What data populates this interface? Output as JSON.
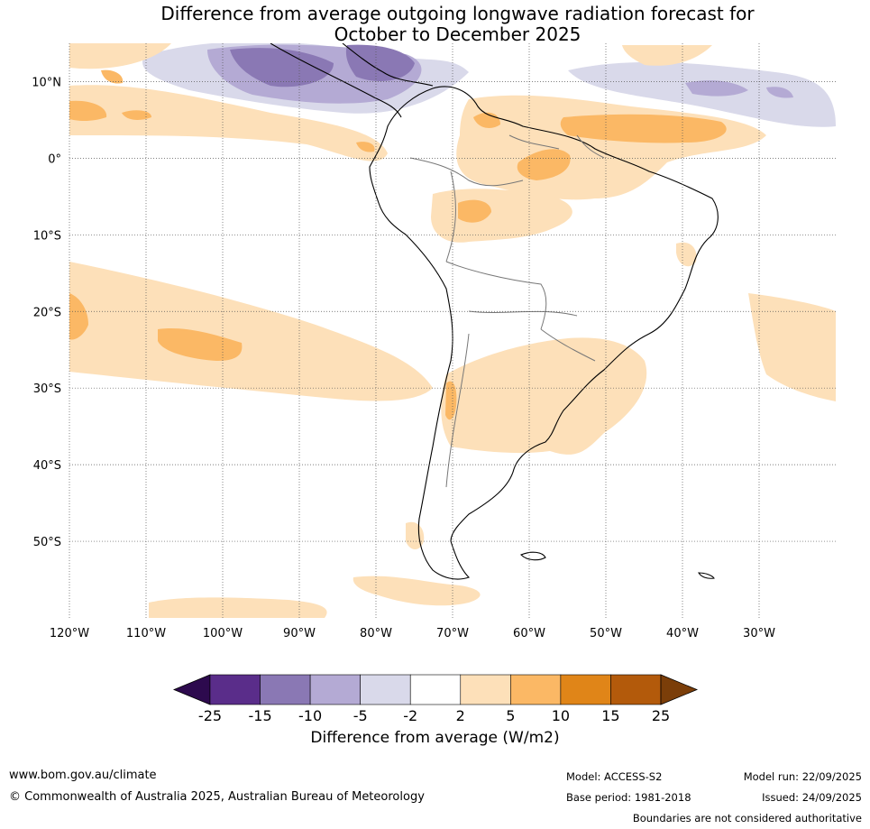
{
  "title": {
    "line1": "Difference from average outgoing longwave radiation forecast for",
    "line2": "October to December 2025"
  },
  "map": {
    "lat_labels": [
      "10°N",
      "0°",
      "10°S",
      "20°S",
      "30°S",
      "40°S",
      "50°S"
    ],
    "lon_labels": [
      "120°W",
      "110°W",
      "100°W",
      "90°W",
      "80°W",
      "70°W",
      "60°W",
      "50°W",
      "40°W",
      "30°W"
    ],
    "lat_values": [
      10,
      0,
      -10,
      -20,
      -30,
      -40,
      -50
    ],
    "lon_values": [
      -120,
      -110,
      -100,
      -90,
      -80,
      -70,
      -60,
      -50,
      -40,
      -30
    ],
    "extent": {
      "lon": [
        -120,
        -20
      ],
      "lat": [
        -60,
        15
      ]
    }
  },
  "colorbar": {
    "tick_labels": [
      "-25",
      "-15",
      "-10",
      "-5",
      "-2",
      "2",
      "5",
      "10",
      "15",
      "25"
    ],
    "colors": [
      "#2d0a4e",
      "#5a2d8a",
      "#8a78b4",
      "#b4aad4",
      "#d9d9ea",
      "#ffffff",
      "#fde0b9",
      "#fbb865",
      "#e08518",
      "#b35a0b",
      "#7b3e09"
    ],
    "title": "Difference from average (W/m2)"
  },
  "footer": {
    "website": "www.bom.gov.au/climate",
    "copyright": "© Commonwealth of Australia 2025, Australian Bureau of Meteorology",
    "model": "Model: ACCESS-S2",
    "base_period": "Base period: 1981-2018",
    "model_run": "Model run: 22/09/2025",
    "issued": "Issued: 24/09/2025",
    "boundaries_note": "Boundaries are not considered authoritative"
  }
}
